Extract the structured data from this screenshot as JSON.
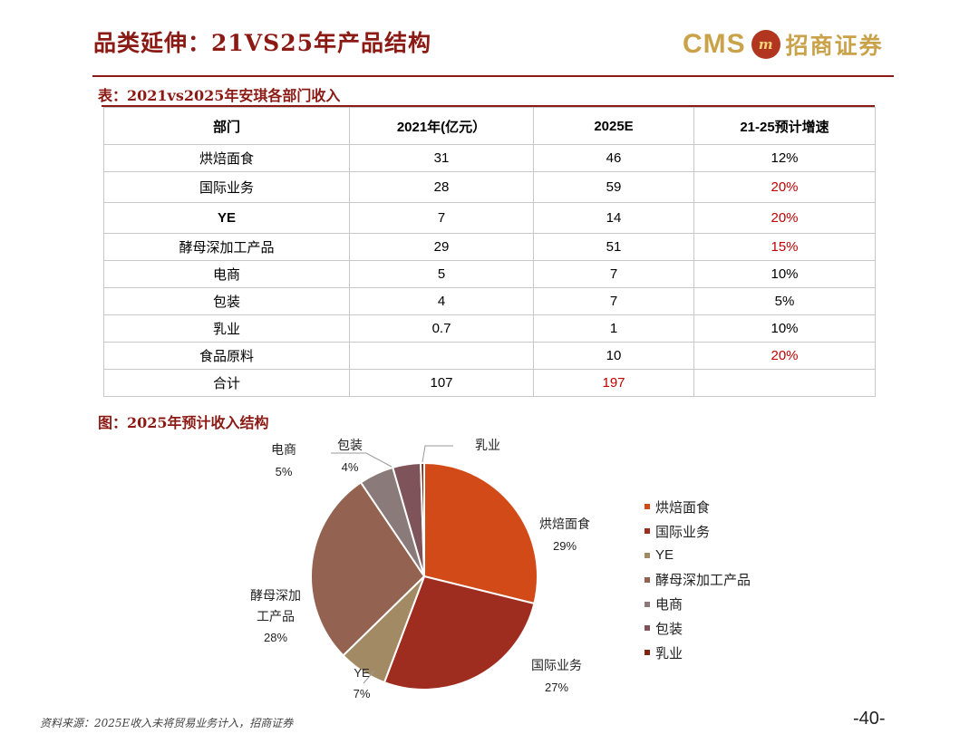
{
  "title": "品类延伸：21VS25年产品结构",
  "logo": {
    "cms": "CMS",
    "cn": "招商证券",
    "mark_text": "m"
  },
  "table": {
    "caption": "表：2021vs2025年安琪各部门收入",
    "headers": [
      "部门",
      "2021年(亿元）",
      "2025E",
      "21-25预计增速"
    ],
    "rows": [
      {
        "dept": "烘焙面食",
        "v2021": "31",
        "v2025": "46",
        "growth": "12%",
        "growth_red": false,
        "v2025_red": false
      },
      {
        "dept": "国际业务",
        "v2021": "28",
        "v2025": "59",
        "growth": "20%",
        "growth_red": true,
        "v2025_red": false
      },
      {
        "dept": "YE",
        "v2021": "7",
        "v2025": "14",
        "growth": "20%",
        "growth_red": true,
        "v2025_red": false
      },
      {
        "dept": "酵母深加工产品",
        "v2021": "29",
        "v2025": "51",
        "growth": "15%",
        "growth_red": true,
        "v2025_red": false
      },
      {
        "dept": "电商",
        "v2021": "5",
        "v2025": "7",
        "growth": "10%",
        "growth_red": false,
        "v2025_red": false
      },
      {
        "dept": "包装",
        "v2021": "4",
        "v2025": "7",
        "growth": "5%",
        "growth_red": false,
        "v2025_red": false
      },
      {
        "dept": "乳业",
        "v2021": "0.7",
        "v2025": "1",
        "growth": "10%",
        "growth_red": false,
        "v2025_red": false
      },
      {
        "dept": "食品原料",
        "v2021": "",
        "v2025": "10",
        "growth": "20%",
        "growth_red": true,
        "v2025_red": false
      },
      {
        "dept": "合计",
        "v2021": "107",
        "v2025": "197",
        "growth": "",
        "growth_red": false,
        "v2025_red": true
      }
    ]
  },
  "figure": {
    "caption": "图：2025年预计收入结构"
  },
  "chart_data": {
    "type": "pie",
    "title": "",
    "slices": [
      {
        "name": "烘焙面食",
        "value": 29,
        "label": "29%",
        "color": "#d24a18"
      },
      {
        "name": "国际业务",
        "value": 27,
        "label": "27%",
        "color": "#9e2c1f"
      },
      {
        "name": "YE",
        "value": 7,
        "label": "7%",
        "color": "#a28a64"
      },
      {
        "name": "酵母深加工产品",
        "value": 28,
        "label": "28%",
        "color": "#946250"
      },
      {
        "name": "电商",
        "value": 5,
        "label": "5%",
        "color": "#8a7b7a"
      },
      {
        "name": "包装",
        "value": 4,
        "label": "4%",
        "color": "#7e545a"
      },
      {
        "name": "乳业",
        "value": 0.5,
        "label": "",
        "color": "#7f2410"
      }
    ],
    "data_labels": {
      "hongbei": {
        "name": "烘焙面食",
        "pct": "29%"
      },
      "guoji": {
        "name": "国际业务",
        "pct": "27%"
      },
      "ye": {
        "name": "YE",
        "pct": "7%"
      },
      "jiaomu_line1": "酵母深加",
      "jiaomu_line2": "工产品",
      "jiaomu_pct": "28%",
      "dianshang": {
        "name": "电商",
        "pct": "5%"
      },
      "baozhuang": {
        "name": "包装",
        "pct": "4%"
      },
      "ruye": {
        "name": "乳业"
      }
    },
    "legend": [
      "烘焙面食",
      "国际业务",
      "YE",
      "酵母深加工产品",
      "电商",
      "包装",
      "乳业"
    ],
    "legend_position": "right"
  },
  "footer": {
    "source": "资料来源：2025E收入未将贸易业务计入，招商证券",
    "page": "-40-"
  }
}
